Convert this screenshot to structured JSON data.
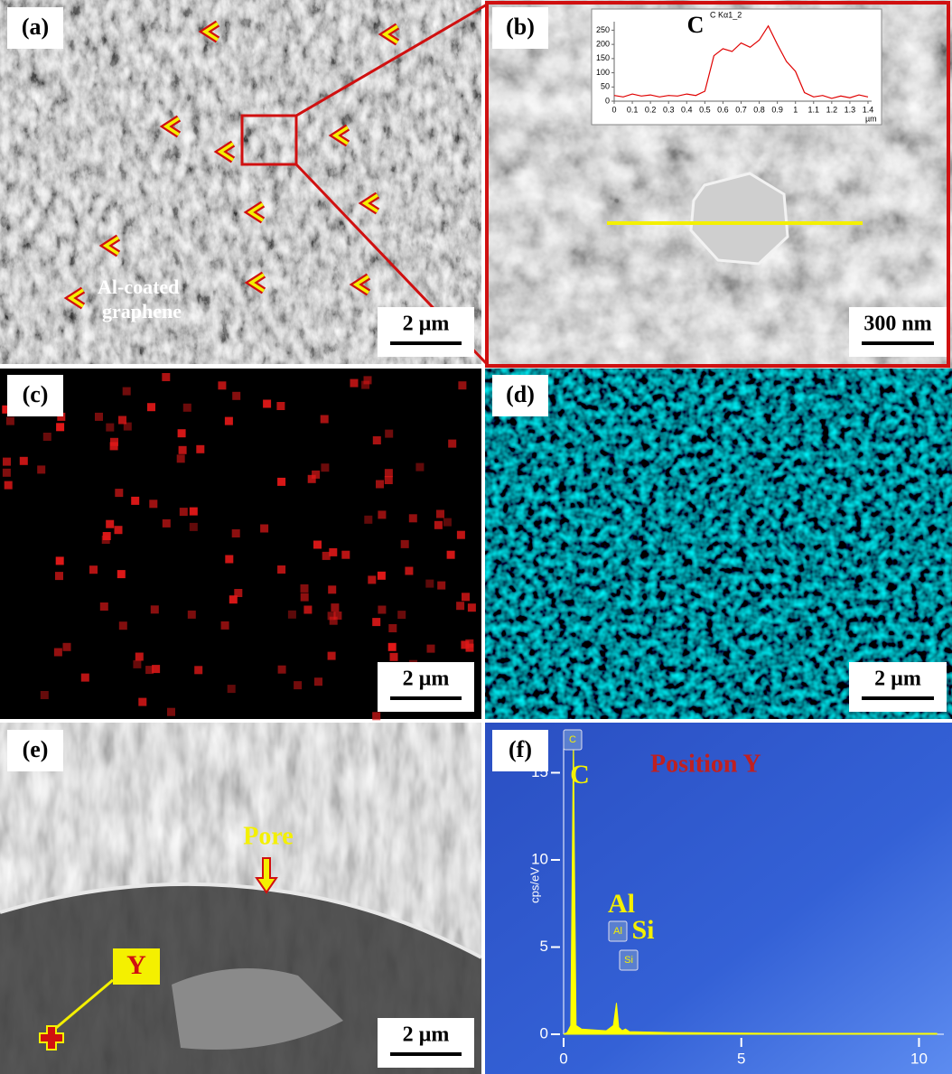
{
  "panels": [
    {
      "label": "(a)",
      "annotation_lines": [
        "Al-coated",
        "graphene"
      ],
      "scale_bar": "2 µm"
    },
    {
      "label": "(b)",
      "scale_bar": "300 nm",
      "inset": {
        "type": "line",
        "element": "C",
        "title": "C Kα1_2",
        "x_unit": "µm",
        "x": [
          0,
          0.05,
          0.1,
          0.15,
          0.2,
          0.25,
          0.3,
          0.35,
          0.4,
          0.45,
          0.5,
          0.55,
          0.6,
          0.65,
          0.7,
          0.75,
          0.8,
          0.85,
          0.9,
          0.95,
          1,
          1.05,
          1.1,
          1.15,
          1.2,
          1.25,
          1.3,
          1.35,
          1.4
        ],
        "values": [
          20,
          15,
          25,
          18,
          22,
          15,
          20,
          18,
          25,
          20,
          35,
          160,
          185,
          175,
          205,
          190,
          215,
          265,
          200,
          140,
          105,
          30,
          15,
          20,
          10,
          18,
          12,
          22,
          15
        ],
        "xlim": [
          0,
          1.42
        ],
        "ylim": [
          0,
          280
        ],
        "xticks": [
          0,
          0.1,
          0.2,
          0.3,
          0.4,
          0.5,
          0.6,
          0.7,
          0.8,
          0.9,
          1,
          1.1,
          1.2,
          1.3,
          1.4
        ],
        "yticks": [
          0,
          50,
          100,
          150,
          200,
          250
        ],
        "color": "#e00000"
      }
    },
    {
      "label": "(c)",
      "scale_bar": "2 µm"
    },
    {
      "label": "(d)",
      "scale_bar": "2 µm"
    },
    {
      "label": "(e)",
      "pore_label": "Pore",
      "point_label": "Y",
      "scale_bar": "2 µm"
    },
    {
      "label": "(f)",
      "spectrum": {
        "type": "area",
        "title": "Position Y",
        "y_label": "cps/eV",
        "peaks": [
          {
            "name": "C",
            "box_label": "C"
          },
          {
            "name": "Al",
            "box_label": "Al"
          },
          {
            "name": "Si",
            "box_label": "Si"
          }
        ],
        "x": [
          0,
          0.1,
          0.2,
          0.25,
          0.277,
          0.3,
          0.35,
          0.5,
          1.2,
          1.4,
          1.487,
          1.55,
          1.65,
          1.74,
          1.85,
          3,
          6,
          10.5
        ],
        "values": [
          0,
          0.1,
          0.5,
          11,
          17.2,
          11,
          0.5,
          0.3,
          0.2,
          0.5,
          1.8,
          0.4,
          0.2,
          0.3,
          0.15,
          0.1,
          0.05,
          0.05
        ],
        "xlim": [
          0,
          10.7
        ],
        "ylim": [
          0,
          17.2
        ],
        "xticks": [
          0,
          5,
          10
        ],
        "yticks": [
          0,
          5,
          10,
          15
        ],
        "color": "#ffff00"
      }
    }
  ]
}
